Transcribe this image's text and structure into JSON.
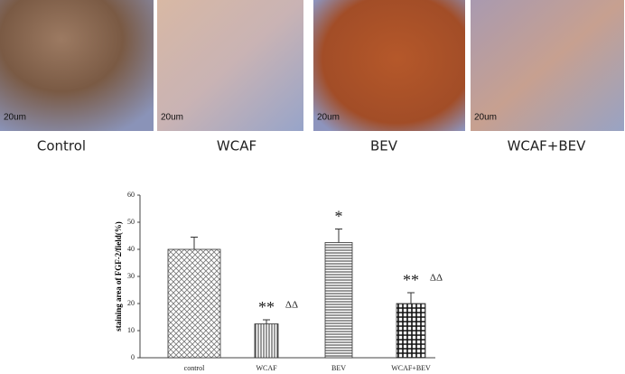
{
  "panels": [
    {
      "label": "Control",
      "scale": "20um"
    },
    {
      "label": "WCAF",
      "scale": "20um"
    },
    {
      "label": "BEV",
      "scale": "20um"
    },
    {
      "label": "WCAF+BEV",
      "scale": "20um"
    }
  ],
  "chart_data": {
    "type": "bar",
    "ylabel": "staining area of FGF-2/field(%)",
    "categories": [
      "control",
      "WCAF",
      "BEV",
      "WCAF+BEV"
    ],
    "values": [
      40,
      12.5,
      42.5,
      20
    ],
    "errors": [
      4.5,
      1.5,
      5,
      4
    ],
    "significance": [
      null,
      "**",
      "*",
      "**"
    ],
    "vs_bev": [
      null,
      "ΔΔ",
      null,
      "ΔΔ"
    ],
    "ylim": [
      0,
      60
    ],
    "yticks": [
      0,
      10,
      20,
      30,
      40,
      50,
      60
    ]
  }
}
